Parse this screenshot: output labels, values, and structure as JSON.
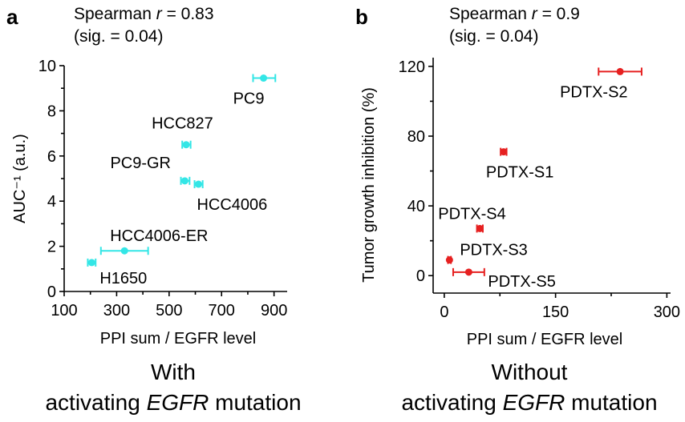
{
  "chart_data": [
    {
      "type": "scatter",
      "panel": "a",
      "stat_line1_prefix": "Spearman ",
      "stat_line1_r": "r",
      "stat_line1_value": " = 0.83",
      "stat_line2": "(sig. = 0.04)",
      "xlabel": "PPI sum / EGFR level",
      "ylabel": "AUC⁻¹ (a.u.)",
      "xlim": [
        100,
        950
      ],
      "ylim": [
        0,
        10
      ],
      "xticks": [
        "100",
        "300",
        "500",
        "700",
        "900"
      ],
      "yticks": [
        "0",
        "2",
        "4",
        "6",
        "8",
        "10"
      ],
      "color": "#33e6e6",
      "points": [
        {
          "name": "PC9",
          "x": 860,
          "y": 9.45,
          "xerr_low": 820,
          "xerr_high": 905
        },
        {
          "name": "HCC827",
          "x": 565,
          "y": 6.5,
          "xerr_low": 550,
          "xerr_high": 582
        },
        {
          "name": "PC9-GR",
          "x": 560,
          "y": 4.9,
          "xerr_low": 545,
          "xerr_high": 578
        },
        {
          "name": "HCC4006",
          "x": 612,
          "y": 4.75,
          "xerr_low": 597,
          "xerr_high": 628
        },
        {
          "name": "HCC4006-ER",
          "x": 330,
          "y": 1.8,
          "xerr_low": 240,
          "xerr_high": 420
        },
        {
          "name": "H1650",
          "x": 205,
          "y": 1.28,
          "xerr_low": 190,
          "xerr_high": 220
        }
      ],
      "caption_line1": "With",
      "caption_line2_pre": "activating ",
      "caption_line2_em": "EGFR",
      "caption_line2_post": " mutation"
    },
    {
      "type": "scatter",
      "panel": "b",
      "stat_line1_prefix": "Spearman ",
      "stat_line1_r": "r",
      "stat_line1_value": " = 0.9",
      "stat_line2": "(sig. = 0.04)",
      "xlabel": "PPI sum / EGFR level",
      "ylabel": "Tumor growth inhibition (%)",
      "xlim": [
        -15,
        305
      ],
      "ylim": [
        -10,
        125
      ],
      "xticks": [
        "0",
        "150",
        "300"
      ],
      "yticks": [
        "0",
        "40",
        "80",
        "120"
      ],
      "color": "#e62020",
      "points": [
        {
          "name": "PDTX-S2",
          "x": 237,
          "y": 117,
          "xerr_low": 208,
          "xerr_high": 266
        },
        {
          "name": "PDTX-S1",
          "x": 80,
          "y": 71,
          "xerr_low": 76,
          "xerr_high": 84
        },
        {
          "name": "PDTX-S4",
          "x": 48,
          "y": 27,
          "xerr_low": 44,
          "xerr_high": 52
        },
        {
          "name": "PDTX-S3",
          "x": 7,
          "y": 9,
          "xerr_low": 5,
          "xerr_high": 9
        },
        {
          "name": "PDTX-S5",
          "x": 33,
          "y": 2,
          "xerr_low": 12,
          "xerr_high": 54
        }
      ],
      "caption_line1": "Without",
      "caption_line2_pre": "activating ",
      "caption_line2_em": "EGFR",
      "caption_line2_post": " mutation"
    }
  ]
}
